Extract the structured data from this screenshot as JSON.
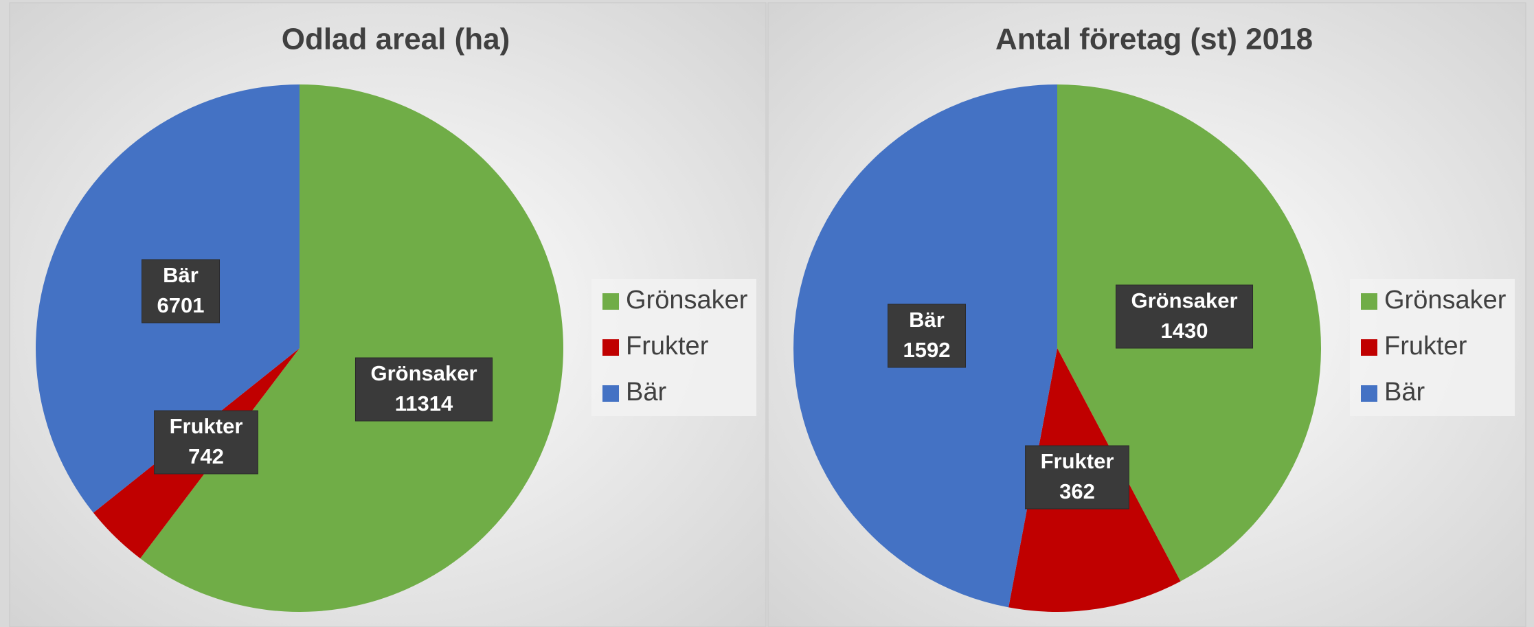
{
  "chart_data": [
    {
      "type": "pie",
      "title": "Odlad areal (ha)",
      "categories": [
        "Grönsaker",
        "Frukter",
        "Bär"
      ],
      "values": [
        11314,
        742,
        6701
      ],
      "colors": [
        "#70ad47",
        "#c00000",
        "#4472c4"
      ],
      "legend": "right"
    },
    {
      "type": "pie",
      "title": "Antal företag (st) 2018",
      "categories": [
        "Grönsaker",
        "Frukter",
        "Bär"
      ],
      "values": [
        1430,
        362,
        1592
      ],
      "colors": [
        "#70ad47",
        "#c00000",
        "#4472c4"
      ],
      "legend": "right"
    }
  ]
}
